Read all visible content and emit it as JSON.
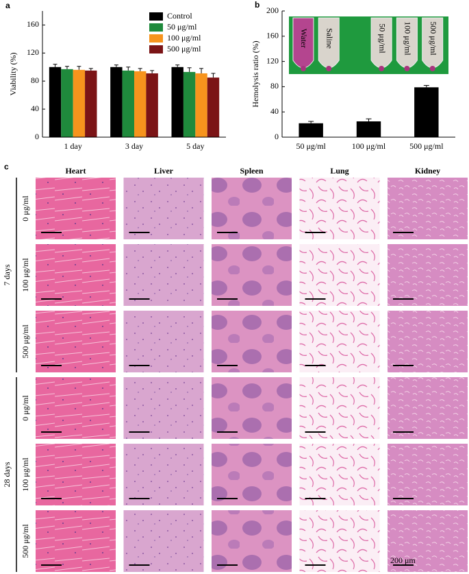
{
  "chart_data": [
    {
      "type": "bar",
      "panel": "a",
      "ylabel": "Viability (%)",
      "categories": [
        "1 day",
        "3 day",
        "5 day"
      ],
      "series": [
        {
          "name": "Control",
          "color": "#000000",
          "values": [
            100,
            100,
            100
          ],
          "errors": [
            4,
            3,
            3
          ]
        },
        {
          "name": "50 μg/ml",
          "color": "#1f8a3c",
          "values": [
            97,
            95,
            93
          ],
          "errors": [
            4,
            5,
            6
          ]
        },
        {
          "name": "100 μg/ml",
          "color": "#f7941d",
          "values": [
            96,
            94,
            91
          ],
          "errors": [
            5,
            4,
            7
          ]
        },
        {
          "name": "500 μg/ml",
          "color": "#7b1416",
          "values": [
            95,
            91,
            85
          ],
          "errors": [
            3,
            4,
            6
          ]
        }
      ],
      "ylim": [
        0,
        180
      ],
      "yticks": [
        0,
        40,
        80,
        120,
        160
      ],
      "legend": "top-right"
    },
    {
      "type": "bar",
      "panel": "b",
      "ylabel": "Hemolysis ratio (%)",
      "categories": [
        "50 μg/ml",
        "100 μg/ml",
        "500 μg/ml"
      ],
      "values": [
        22,
        25,
        79
      ],
      "errors": [
        3,
        4,
        3
      ],
      "color": "#000000",
      "ylim": [
        0,
        200
      ],
      "yticks": [
        0,
        40,
        80,
        120,
        160,
        200
      ],
      "inset_labels": [
        "Water",
        "Saline",
        "50 μg/ml",
        "100 μg/ml",
        "500 μg/ml"
      ]
    }
  ],
  "histology": {
    "panel": "c",
    "columns": [
      "Heart",
      "Liver",
      "Spleen",
      "Lung",
      "Kidney"
    ],
    "groups": [
      {
        "label": "7 days",
        "rows": [
          "0 μg/ml",
          "100 μg/ml",
          "500 μg/ml"
        ]
      },
      {
        "label": "28 days",
        "rows": [
          "0 μg/ml",
          "100 μg/ml",
          "500 μg/ml"
        ]
      }
    ],
    "scale_bar": "200 μm"
  }
}
